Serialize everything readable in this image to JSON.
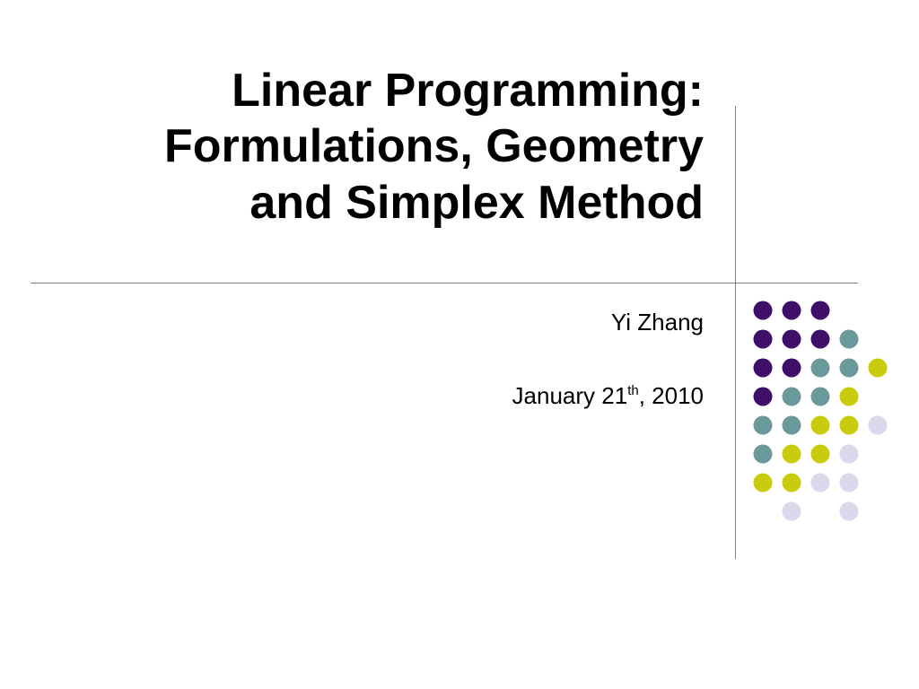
{
  "slide": {
    "title_lines": [
      "Linear Programming:",
      "Formulations, Geometry",
      "and Simplex Method"
    ],
    "author": "Yi Zhang",
    "date_prefix": "January 21",
    "date_superscript": "th",
    "date_suffix": ", 2010"
  },
  "decoration": {
    "palette": {
      "purple": "#3f0f69",
      "teal": "#6a9a9c",
      "olive": "#c9cb0e",
      "lavender": "#d9d8ec"
    },
    "dot_rows": [
      [
        "purple",
        "purple",
        "purple",
        null,
        null
      ],
      [
        "purple",
        "purple",
        "purple",
        "teal",
        null
      ],
      [
        "purple",
        "purple",
        "teal",
        "teal",
        "olive"
      ],
      [
        "purple",
        "teal",
        "teal",
        "olive",
        null
      ],
      [
        "teal",
        "teal",
        "olive",
        "olive",
        "lavender"
      ],
      [
        "teal",
        "olive",
        "olive",
        "lavender",
        null
      ],
      [
        "olive",
        "olive",
        "lavender",
        "lavender",
        null
      ],
      [
        null,
        "lavender",
        null,
        "lavender",
        null
      ]
    ],
    "rule_color": "#808080"
  }
}
